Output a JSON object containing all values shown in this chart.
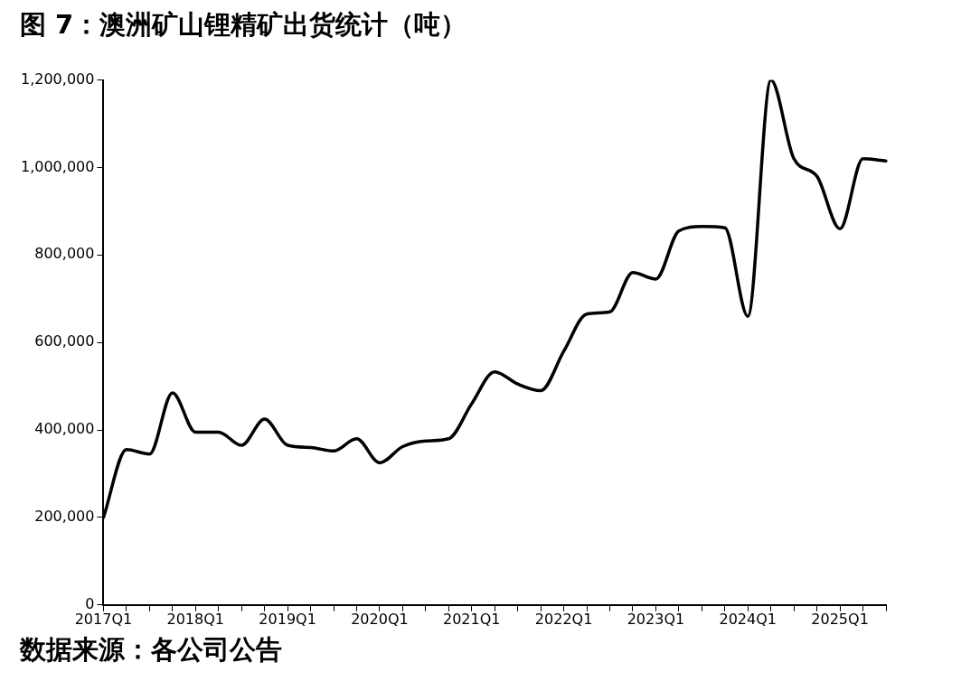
{
  "chart_data": {
    "type": "line",
    "title": "图 7：澳洲矿山锂精矿出货统计（吨）",
    "annotations": [
      "数据来源：各公司公告"
    ],
    "categories": [
      "2017Q1",
      null,
      null,
      null,
      "2018Q1",
      null,
      null,
      null,
      "2019Q1",
      null,
      null,
      null,
      "2020Q1",
      null,
      null,
      null,
      "2021Q1",
      null,
      null,
      null,
      "2022Q1",
      null,
      null,
      null,
      "2023Q1",
      null,
      null,
      null,
      "2024Q1",
      null,
      null,
      null,
      "2025Q1",
      null,
      null
    ],
    "series": [
      {
        "color": "#000000",
        "values": [
          200000,
          355000,
          345000,
          485000,
          395000,
          395000,
          365000,
          425000,
          365000,
          360000,
          352000,
          380000,
          325000,
          362000,
          375000,
          380000,
          460000,
          533000,
          505000,
          490000,
          580000,
          665000,
          670000,
          760000,
          745000,
          855000,
          865000,
          862000,
          660000,
          1200000,
          1020000,
          980000,
          860000,
          1020000,
          1015000
        ]
      }
    ],
    "ylim": [
      0,
      1200000
    ],
    "yticks": [
      0,
      {
        "value": 200000,
        "label": "200,000"
      },
      {
        "value": 400000,
        "label": "400,000"
      },
      {
        "value": 600000,
        "label": "600,000"
      },
      {
        "value": 800000,
        "label": "800,000"
      },
      {
        "value": 1000000,
        "label": "1,000,000"
      },
      {
        "value": 1200000,
        "label": "1,200,000"
      }
    ],
    "grid": false,
    "legend": false,
    "marker": "none",
    "line_style": "solid"
  }
}
